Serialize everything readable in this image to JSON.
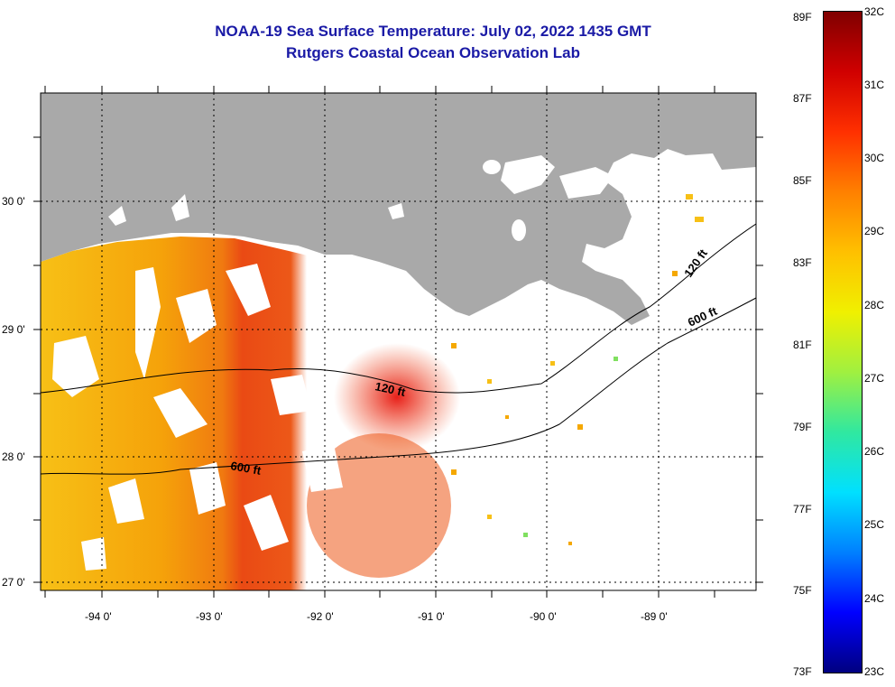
{
  "title": {
    "line1": "NOAA-19 Sea Surface Temperature:  July 02, 2022 1435 GMT",
    "line2": "Rutgers Coastal Ocean Observation Lab"
  },
  "map": {
    "lat_labels": [
      "30 0'",
      "29 0'",
      "28 0'",
      "27 0'"
    ],
    "lon_labels": [
      "-94 0'",
      "-93 0'",
      "-92 0'",
      "-91 0'",
      "-90 0'",
      "-89 0'"
    ],
    "contour_labels": [
      "120 ft",
      "600 ft",
      "120 ft",
      "600 ft"
    ],
    "colors": {
      "land": "#a9a9a9",
      "cloud": "#ffffff",
      "sst_warm": "#f5a800",
      "sst_hot": "#ef3a10"
    }
  },
  "colorbar": {
    "fahrenheit": [
      "89F",
      "87F",
      "85F",
      "83F",
      "81F",
      "79F",
      "77F",
      "75F",
      "73F"
    ],
    "celsius": [
      "32C",
      "31C",
      "30C",
      "29C",
      "28C",
      "27C",
      "26C",
      "25C",
      "24C",
      "23C"
    ],
    "colors": [
      "#000080",
      "#0000ff",
      "#0080ff",
      "#00e0ff",
      "#30e8a0",
      "#a0f040",
      "#f0f000",
      "#ffc000",
      "#ff8000",
      "#ff3000",
      "#d00000",
      "#800000"
    ]
  }
}
